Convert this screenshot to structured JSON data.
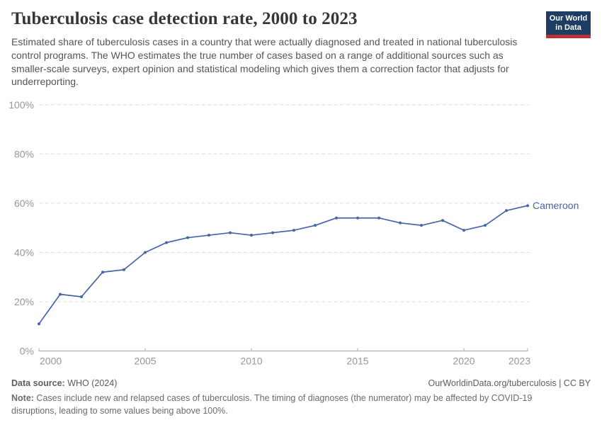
{
  "header": {
    "title": "Tuberculosis case detection rate, 2000 to 2023",
    "subtitle": "Estimated share of tuberculosis cases in a country that were actually diagnosed and treated in national tuberculosis control programs. The WHO estimates the true number of cases based on a range of additional sources such as smaller-scale surveys, expert opinion and statistical modeling which gives them a correction factor that adjusts for underreporting.",
    "logo": {
      "line1": "Our World",
      "line2": "in Data",
      "bg_color": "#1d3d63",
      "bar_color": "#bf3036"
    }
  },
  "chart_data": {
    "type": "line",
    "title": "Tuberculosis case detection rate, 2000 to 2023",
    "xlabel": "",
    "ylabel": "",
    "x": [
      2000,
      2001,
      2002,
      2003,
      2004,
      2005,
      2006,
      2007,
      2008,
      2009,
      2010,
      2011,
      2012,
      2013,
      2014,
      2015,
      2016,
      2017,
      2018,
      2019,
      2020,
      2021,
      2022,
      2023
    ],
    "series": [
      {
        "name": "Cameroon",
        "color": "#4465a6",
        "values": [
          11,
          23,
          22,
          32,
          33,
          40,
          44,
          46,
          47,
          48,
          47,
          48,
          49,
          51,
          54,
          54,
          54,
          52,
          51,
          53,
          49,
          51,
          57,
          59
        ]
      }
    ],
    "xlim": [
      2000,
      2023
    ],
    "ylim": [
      0,
      100
    ],
    "yticks": [
      0,
      20,
      40,
      60,
      80,
      100
    ],
    "ytick_suffix": "%",
    "xticks": [
      2000,
      2005,
      2010,
      2015,
      2020,
      2023
    ],
    "grid": "horizontal-dashed",
    "legend_position": "end-of-line-label"
  },
  "colors": {
    "line": "#4465a6",
    "axis_label": "#969696",
    "gridline": "#dedede",
    "axis_line": "#a5a5a5"
  },
  "footer": {
    "source_label": "Data source:",
    "source_value": " WHO (2024)",
    "attribution": "OurWorldinData.org/tuberculosis | CC BY",
    "note_label": "Note:",
    "note_text": " Cases include new and relapsed cases of tuberculosis. The timing of diagnoses (the numerator) may be affected by COVID-19 disruptions, leading to some values being above 100%."
  }
}
